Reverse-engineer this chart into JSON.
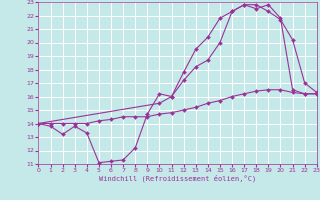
{
  "title": "",
  "xlabel": "Windchill (Refroidissement éolien,°C)",
  "bg_color": "#c5e8e8",
  "grid_color": "#ffffff",
  "line_color": "#993399",
  "marker_color": "#993399",
  "xmin": 0,
  "xmax": 23,
  "ymin": 11,
  "ymax": 23,
  "curve1_x": [
    0,
    1,
    2,
    3,
    4,
    5,
    6,
    7,
    8,
    9,
    10,
    11,
    12,
    13,
    14,
    15,
    16,
    17,
    18,
    19,
    20,
    21,
    22,
    23
  ],
  "curve1_y": [
    14.0,
    13.8,
    13.2,
    13.8,
    13.3,
    11.1,
    11.2,
    11.3,
    12.2,
    14.7,
    16.2,
    16.0,
    17.8,
    19.5,
    20.4,
    21.8,
    22.3,
    22.8,
    22.8,
    22.3,
    21.7,
    20.2,
    17.0,
    16.3
  ],
  "curve2_x": [
    0,
    1,
    2,
    3,
    4,
    5,
    6,
    7,
    8,
    9,
    10,
    11,
    12,
    13,
    14,
    15,
    16,
    17,
    18,
    19,
    20,
    21,
    22,
    23
  ],
  "curve2_y": [
    14.0,
    14.0,
    14.0,
    14.0,
    14.0,
    14.2,
    14.3,
    14.5,
    14.5,
    14.5,
    14.7,
    14.8,
    15.0,
    15.2,
    15.5,
    15.7,
    16.0,
    16.2,
    16.4,
    16.5,
    16.5,
    16.3,
    16.2,
    16.2
  ],
  "curve3_x": [
    0,
    10,
    11,
    12,
    13,
    14,
    15,
    16,
    17,
    18,
    19,
    20,
    21,
    22,
    23
  ],
  "curve3_y": [
    14.0,
    15.5,
    16.0,
    17.2,
    18.2,
    18.7,
    20.0,
    22.3,
    22.8,
    22.5,
    22.8,
    21.8,
    16.5,
    16.2,
    16.2
  ]
}
